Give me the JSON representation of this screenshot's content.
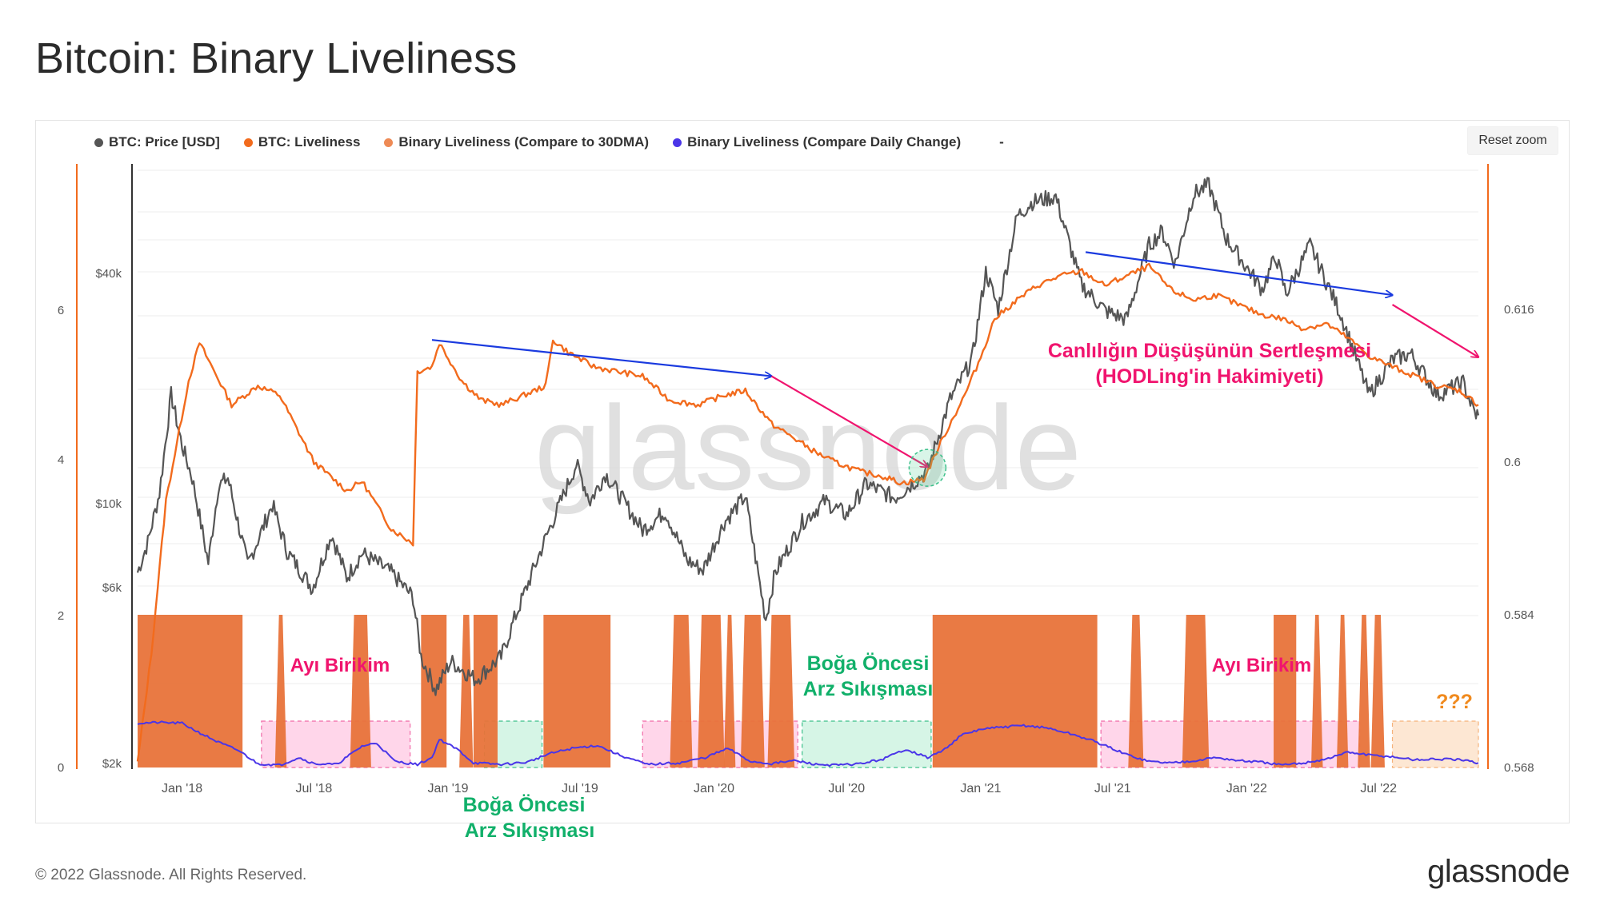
{
  "page": {
    "title": "Bitcoin: Binary Liveliness",
    "reset_zoom_label": "Reset zoom",
    "copyright": "© 2022 Glassnode. All Rights Reserved.",
    "logo_text": "glassnode",
    "watermark": "glassnode"
  },
  "legend": [
    {
      "label": "BTC: Price [USD]",
      "color": "#555555"
    },
    {
      "label": "BTC: Liveliness",
      "color": "#f26b1d"
    },
    {
      "label": "Binary Liveliness (Compare to 30DMA)",
      "color": "#ee8a55"
    },
    {
      "label": "Binary Liveliness (Compare Daily Change)",
      "color": "#4a35e8"
    }
  ],
  "legend_trailing": "-",
  "colors": {
    "price": "#555555",
    "liveliness": "#f26b1d",
    "binary_30dma": "#e8733a",
    "binary_daily": "#4a35e8",
    "trend_blue": "#1a3adf",
    "trend_pink": "#f0146e",
    "ann_pink": "#f0146e",
    "ann_green": "#11b06a",
    "ann_orange": "#f08a1e",
    "zone_pink": "#ffd6ea",
    "zone_green": "#d6f5e6",
    "zone_peach": "#fde7d3"
  },
  "chart_data": {
    "type": "line",
    "x_ticks": [
      "Jan '18",
      "Jul '18",
      "Jan '19",
      "Jul '19",
      "Jan '20",
      "Jul '20",
      "Jan '21",
      "Jul '21",
      "Jan '22",
      "Jul '22"
    ],
    "x_range": [
      "2017-11-01",
      "2022-11-15"
    ],
    "y_left_outer": {
      "ticks": [
        "0",
        "2",
        "4",
        "6"
      ],
      "range": [
        0,
        6
      ]
    },
    "y_left_price": {
      "ticks": [
        "$2k",
        "$6k",
        "$10k",
        "$40k"
      ],
      "scale": "log"
    },
    "y_right": {
      "ticks": [
        "0.568",
        "0.584",
        "0.6",
        "0.616"
      ],
      "range": [
        0.568,
        0.616
      ]
    },
    "series": [
      {
        "name": "BTC: Price [USD]",
        "axis": "price",
        "points": [
          [
            "2017-11-01",
            6500
          ],
          [
            "2017-11-15",
            7800
          ],
          [
            "2017-12-01",
            10500
          ],
          [
            "2017-12-17",
            19000
          ],
          [
            "2018-01-01",
            14000
          ],
          [
            "2018-01-15",
            11500
          ],
          [
            "2018-02-06",
            6900
          ],
          [
            "2018-02-20",
            11000
          ],
          [
            "2018-03-05",
            11500
          ],
          [
            "2018-04-01",
            6800
          ],
          [
            "2018-05-05",
            9800
          ],
          [
            "2018-05-25",
            7400
          ],
          [
            "2018-06-29",
            5900
          ],
          [
            "2018-07-25",
            8200
          ],
          [
            "2018-08-15",
            6300
          ],
          [
            "2018-09-05",
            7300
          ],
          [
            "2018-10-15",
            6500
          ],
          [
            "2018-11-14",
            5600
          ],
          [
            "2018-11-25",
            3900
          ],
          [
            "2018-12-15",
            3200
          ],
          [
            "2019-01-05",
            3800
          ],
          [
            "2019-02-08",
            3400
          ],
          [
            "2019-03-15",
            3900
          ],
          [
            "2019-04-02",
            4900
          ],
          [
            "2019-05-15",
            8000
          ],
          [
            "2019-06-26",
            12500
          ],
          [
            "2019-07-15",
            10000
          ],
          [
            "2019-08-05",
            11800
          ],
          [
            "2019-09-25",
            8400
          ],
          [
            "2019-10-26",
            9400
          ],
          [
            "2019-11-25",
            7000
          ],
          [
            "2019-12-17",
            6600
          ],
          [
            "2020-01-15",
            8800
          ],
          [
            "2020-02-13",
            10300
          ],
          [
            "2020-03-12",
            4900
          ],
          [
            "2020-03-25",
            6500
          ],
          [
            "2020-05-01",
            8800
          ],
          [
            "2020-06-01",
            10000
          ],
          [
            "2020-07-01",
            9200
          ],
          [
            "2020-07-28",
            11100
          ],
          [
            "2020-09-05",
            10200
          ],
          [
            "2020-10-20",
            12000
          ],
          [
            "2020-11-20",
            18500
          ],
          [
            "2020-12-20",
            23500
          ],
          [
            "2021-01-08",
            40000
          ],
          [
            "2021-01-25",
            32000
          ],
          [
            "2021-02-20",
            56000
          ],
          [
            "2021-03-13",
            61000
          ],
          [
            "2021-04-14",
            63000
          ],
          [
            "2021-05-19",
            37000
          ],
          [
            "2021-06-22",
            31500
          ],
          [
            "2021-07-20",
            30000
          ],
          [
            "2021-08-20",
            47000
          ],
          [
            "2021-09-07",
            51000
          ],
          [
            "2021-09-25",
            42000
          ],
          [
            "2021-10-20",
            64000
          ],
          [
            "2021-11-10",
            67500
          ],
          [
            "2021-12-04",
            49000
          ],
          [
            "2022-01-22",
            36000
          ],
          [
            "2022-02-10",
            44000
          ],
          [
            "2022-02-24",
            35000
          ],
          [
            "2022-03-29",
            47000
          ],
          [
            "2022-05-10",
            31000
          ],
          [
            "2022-06-18",
            19000
          ],
          [
            "2022-07-20",
            23500
          ],
          [
            "2022-08-14",
            24400
          ],
          [
            "2022-09-20",
            19000
          ],
          [
            "2022-10-25",
            20500
          ],
          [
            "2022-11-10",
            17000
          ],
          [
            "2022-11-15",
            16800
          ]
        ]
      },
      {
        "name": "BTC: Liveliness",
        "axis": "right",
        "points": [
          [
            "2017-11-01",
            0.5685
          ],
          [
            "2017-11-20",
            0.58
          ],
          [
            "2017-12-10",
            0.596
          ],
          [
            "2017-12-25",
            0.602
          ],
          [
            "2018-01-10",
            0.6085
          ],
          [
            "2018-01-25",
            0.6125
          ],
          [
            "2018-03-10",
            0.606
          ],
          [
            "2018-04-15",
            0.608
          ],
          [
            "2018-05-15",
            0.607
          ],
          [
            "2018-07-01",
            0.6
          ],
          [
            "2018-08-15",
            0.597
          ],
          [
            "2018-09-05",
            0.598
          ],
          [
            "2018-10-15",
            0.593
          ],
          [
            "2018-11-14",
            0.5915
          ],
          [
            "2018-11-20",
            0.6095
          ],
          [
            "2018-12-10",
            0.61
          ],
          [
            "2018-12-20",
            0.6125
          ],
          [
            "2019-01-20",
            0.6085
          ],
          [
            "2019-02-15",
            0.6065
          ],
          [
            "2019-03-15",
            0.606
          ],
          [
            "2019-04-15",
            0.607
          ],
          [
            "2019-05-15",
            0.608
          ],
          [
            "2019-05-25",
            0.6128
          ],
          [
            "2019-06-15",
            0.6115
          ],
          [
            "2019-07-20",
            0.61
          ],
          [
            "2019-08-20",
            0.6095
          ],
          [
            "2019-09-25",
            0.609
          ],
          [
            "2019-11-01",
            0.6065
          ],
          [
            "2019-12-10",
            0.606
          ],
          [
            "2020-01-15",
            0.607
          ],
          [
            "2020-02-13",
            0.6075
          ],
          [
            "2020-03-20",
            0.604
          ],
          [
            "2020-04-20",
            0.6025
          ],
          [
            "2020-05-20",
            0.601
          ],
          [
            "2020-06-15",
            0.6
          ],
          [
            "2020-07-20",
            0.599
          ],
          [
            "2020-08-20",
            0.5985
          ],
          [
            "2020-09-15",
            0.5978
          ],
          [
            "2020-10-15",
            0.5982
          ],
          [
            "2020-11-10",
            0.6025
          ],
          [
            "2020-12-10",
            0.607
          ],
          [
            "2021-01-01",
            0.611
          ],
          [
            "2021-01-20",
            0.615
          ],
          [
            "2021-02-20",
            0.617
          ],
          [
            "2021-03-20",
            0.6185
          ],
          [
            "2021-04-20",
            0.6195
          ],
          [
            "2021-05-20",
            0.62
          ],
          [
            "2021-06-20",
            0.6185
          ],
          [
            "2021-07-20",
            0.6195
          ],
          [
            "2021-08-20",
            0.6205
          ],
          [
            "2021-09-20",
            0.618
          ],
          [
            "2021-10-20",
            0.617
          ],
          [
            "2021-11-20",
            0.6175
          ],
          [
            "2021-12-20",
            0.6165
          ],
          [
            "2022-01-20",
            0.6155
          ],
          [
            "2022-02-20",
            0.615
          ],
          [
            "2022-03-20",
            0.614
          ],
          [
            "2022-04-20",
            0.6145
          ],
          [
            "2022-05-20",
            0.613
          ],
          [
            "2022-06-20",
            0.611
          ],
          [
            "2022-07-20",
            0.61
          ],
          [
            "2022-08-20",
            0.609
          ],
          [
            "2022-09-20",
            0.608
          ],
          [
            "2022-10-20",
            0.6075
          ],
          [
            "2022-11-15",
            0.606
          ]
        ]
      },
      {
        "name": "Binary Liveliness (Compare to 30DMA)",
        "axis": "left_outer",
        "type": "area",
        "on_intervals": [
          [
            "2017-11-01",
            "2018-03-25"
          ],
          [
            "2018-05-14",
            "2018-05-19"
          ],
          [
            "2018-08-25",
            "2018-09-12"
          ],
          [
            "2018-11-25",
            "2018-12-30"
          ],
          [
            "2019-01-22",
            "2019-01-30"
          ],
          [
            "2019-02-05",
            "2019-03-10"
          ],
          [
            "2019-05-12",
            "2019-08-12"
          ],
          [
            "2019-11-07",
            "2019-11-27"
          ],
          [
            "2019-12-15",
            "2020-01-10"
          ],
          [
            "2020-01-20",
            "2020-01-25"
          ],
          [
            "2020-02-12",
            "2020-03-05"
          ],
          [
            "2020-03-20",
            "2020-04-15"
          ],
          [
            "2020-10-27",
            "2021-06-10"
          ],
          [
            "2021-07-28",
            "2021-08-07"
          ],
          [
            "2021-10-10",
            "2021-11-05"
          ],
          [
            "2022-02-07",
            "2022-03-10"
          ],
          [
            "2022-04-05",
            "2022-04-10"
          ],
          [
            "2022-05-10",
            "2022-05-15"
          ],
          [
            "2022-06-08",
            "2022-06-14"
          ],
          [
            "2022-06-26",
            "2022-07-04"
          ]
        ],
        "on_value": 2.0
      },
      {
        "name": "Binary Liveliness (Compare Daily Change)",
        "axis": "left_outer",
        "points": [
          [
            "2017-11-01",
            0.58
          ],
          [
            "2017-12-01",
            0.59
          ],
          [
            "2018-01-01",
            0.58
          ],
          [
            "2018-01-20",
            0.48
          ],
          [
            "2018-02-20",
            0.33
          ],
          [
            "2018-03-20",
            0.22
          ],
          [
            "2018-04-15",
            0.05
          ],
          [
            "2018-05-15",
            0.03
          ],
          [
            "2018-06-10",
            0.13
          ],
          [
            "2018-07-01",
            0.05
          ],
          [
            "2018-08-01",
            0.04
          ],
          [
            "2018-09-05",
            0.28
          ],
          [
            "2018-09-25",
            0.32
          ],
          [
            "2018-10-20",
            0.08
          ],
          [
            "2018-11-20",
            0.04
          ],
          [
            "2018-12-10",
            0.13
          ],
          [
            "2018-12-20",
            0.37
          ],
          [
            "2019-01-15",
            0.23
          ],
          [
            "2019-02-05",
            0.06
          ],
          [
            "2019-03-15",
            0.04
          ],
          [
            "2019-04-20",
            0.07
          ],
          [
            "2019-05-20",
            0.18
          ],
          [
            "2019-06-20",
            0.25
          ],
          [
            "2019-07-25",
            0.29
          ],
          [
            "2019-08-25",
            0.16
          ],
          [
            "2019-10-01",
            0.04
          ],
          [
            "2019-11-15",
            0.06
          ],
          [
            "2019-12-20",
            0.13
          ],
          [
            "2020-01-20",
            0.25
          ],
          [
            "2020-02-20",
            0.08
          ],
          [
            "2020-03-20",
            0.05
          ],
          [
            "2020-04-20",
            0.09
          ],
          [
            "2020-05-20",
            0.04
          ],
          [
            "2020-06-20",
            0.03
          ],
          [
            "2020-07-20",
            0.05
          ],
          [
            "2020-08-20",
            0.11
          ],
          [
            "2020-09-20",
            0.24
          ],
          [
            "2020-10-20",
            0.13
          ],
          [
            "2020-11-10",
            0.22
          ],
          [
            "2020-12-05",
            0.42
          ],
          [
            "2021-01-01",
            0.5
          ],
          [
            "2021-02-01",
            0.53
          ],
          [
            "2021-03-01",
            0.55
          ],
          [
            "2021-04-01",
            0.52
          ],
          [
            "2021-05-01",
            0.45
          ],
          [
            "2021-06-01",
            0.36
          ],
          [
            "2021-06-25",
            0.27
          ],
          [
            "2021-07-20",
            0.17
          ],
          [
            "2021-08-20",
            0.08
          ],
          [
            "2021-09-20",
            0.06
          ],
          [
            "2021-10-20",
            0.09
          ],
          [
            "2021-11-20",
            0.13
          ],
          [
            "2021-12-20",
            0.09
          ],
          [
            "2022-01-20",
            0.07
          ],
          [
            "2022-02-20",
            0.03
          ],
          [
            "2022-03-20",
            0.06
          ],
          [
            "2022-04-20",
            0.11
          ],
          [
            "2022-05-20",
            0.2
          ],
          [
            "2022-06-20",
            0.16
          ],
          [
            "2022-07-20",
            0.14
          ],
          [
            "2022-08-20",
            0.1
          ],
          [
            "2022-09-20",
            0.11
          ],
          [
            "2022-10-20",
            0.1
          ],
          [
            "2022-11-15",
            0.06
          ]
        ]
      }
    ],
    "zones": [
      {
        "type": "pink",
        "start": "2018-04-20",
        "end": "2018-11-10"
      },
      {
        "type": "green",
        "start": "2019-02-20",
        "end": "2019-05-10"
      },
      {
        "type": "pink",
        "start": "2019-09-25",
        "end": "2020-04-25"
      },
      {
        "type": "green",
        "start": "2020-05-01",
        "end": "2020-10-25"
      },
      {
        "type": "pink",
        "start": "2021-06-15",
        "end": "2022-06-05"
      },
      {
        "type": "peach",
        "start": "2022-07-20",
        "end": "2022-11-15"
      }
    ],
    "annotations": [
      {
        "text": "Ayı Birikim",
        "color": "pink"
      },
      {
        "text": "Boğa Öncesi",
        "color": "green"
      },
      {
        "text": "Arz Sıkışması",
        "color": "green"
      },
      {
        "text": "Ayı Birikim",
        "color": "pink"
      },
      {
        "text": "Boğa Öncesi",
        "color": "green"
      },
      {
        "text": "Arz Sıkışması",
        "color": "green"
      },
      {
        "text": "Canlılığın Düşüşünün Sertleşmesi",
        "color": "pink"
      },
      {
        "text": "(HODLing'in Hakimiyeti)",
        "color": "pink"
      },
      {
        "text": "???",
        "color": "orange"
      }
    ],
    "trend_arrows": [
      {
        "color": "blue",
        "from": [
          "2018-12-10",
          0.6128
        ],
        "to": [
          "2020-03-20",
          0.609
        ]
      },
      {
        "color": "pink",
        "from": [
          "2020-03-20",
          0.609
        ],
        "to": [
          "2020-10-20",
          0.5995
        ]
      },
      {
        "color": "blue",
        "from": [
          "2021-05-25",
          0.622
        ],
        "to": [
          "2022-07-20",
          0.6175
        ]
      },
      {
        "color": "pink",
        "from": [
          "2022-07-20",
          0.6165
        ],
        "to": [
          "2022-11-15",
          0.611
        ]
      }
    ],
    "highlight_circle": {
      "date": "2020-10-20",
      "value": 0.5994
    }
  }
}
